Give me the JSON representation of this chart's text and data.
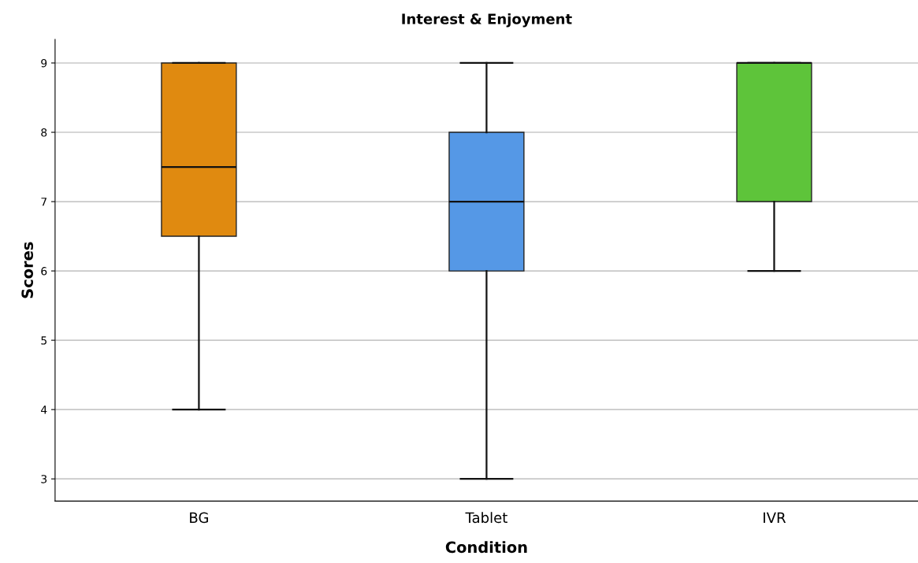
{
  "chart_data": {
    "type": "box",
    "title": "Interest & Enjoyment",
    "xlabel": "Condition",
    "ylabel": "Scores",
    "categories": [
      "BG",
      "Tablet",
      "IVR"
    ],
    "boxes": [
      {
        "low": 4,
        "q1": 6.5,
        "median": 7.5,
        "q3": 9,
        "high": 9
      },
      {
        "low": 3,
        "q1": 6,
        "median": 7,
        "q3": 8,
        "high": 9
      },
      {
        "low": 6,
        "q1": 7,
        "median": 9,
        "q3": 9,
        "high": 9
      }
    ],
    "colors": [
      "#e08a10",
      "#5598e6",
      "#5ec43a"
    ],
    "ylim": [
      2.68,
      9.34
    ],
    "yticks": [
      3,
      4,
      5,
      6,
      7,
      8,
      9
    ],
    "grid": "y"
  }
}
